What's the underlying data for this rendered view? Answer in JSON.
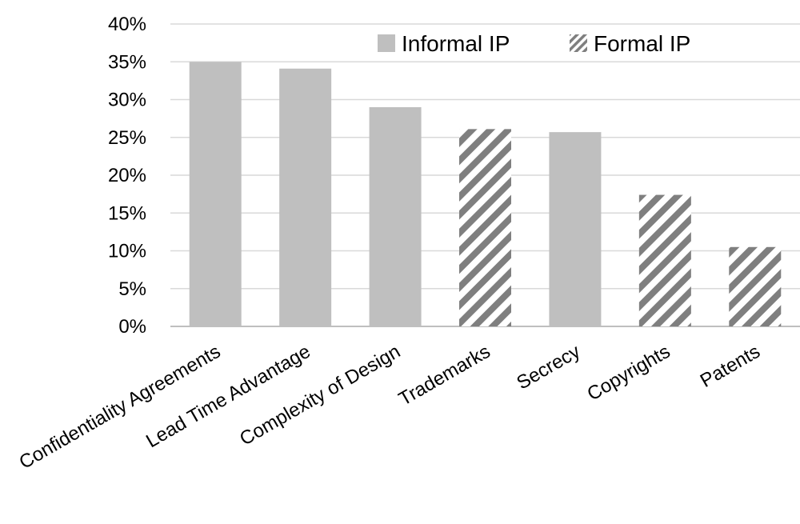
{
  "chart_data": {
    "type": "bar",
    "categories": [
      "Confidentiality Agreements",
      "Lead Time Advantage",
      "Complexity of Design",
      "Trademarks",
      "Secrecy",
      "Copyrights",
      "Patents"
    ],
    "values": [
      35.0,
      34.1,
      29.0,
      26.1,
      25.7,
      17.4,
      10.5
    ],
    "groups": [
      "Informal IP",
      "Informal IP",
      "Informal IP",
      "Formal IP",
      "Informal IP",
      "Formal IP",
      "Formal IP"
    ],
    "y_ticks": [
      "0%",
      "5%",
      "10%",
      "15%",
      "20%",
      "25%",
      "30%",
      "35%",
      "40%"
    ],
    "ylim": [
      0,
      40
    ],
    "grid": true,
    "legend": {
      "position": "top-right",
      "items": [
        {
          "label": "Informal IP",
          "style": "solid"
        },
        {
          "label": "Formal IP",
          "style": "hatched"
        }
      ]
    },
    "colors": {
      "bar": "#bfbfbf",
      "hatch": "#7f7f7f",
      "grid": "#d9d9d9",
      "axis": "#bfbfbf"
    }
  }
}
